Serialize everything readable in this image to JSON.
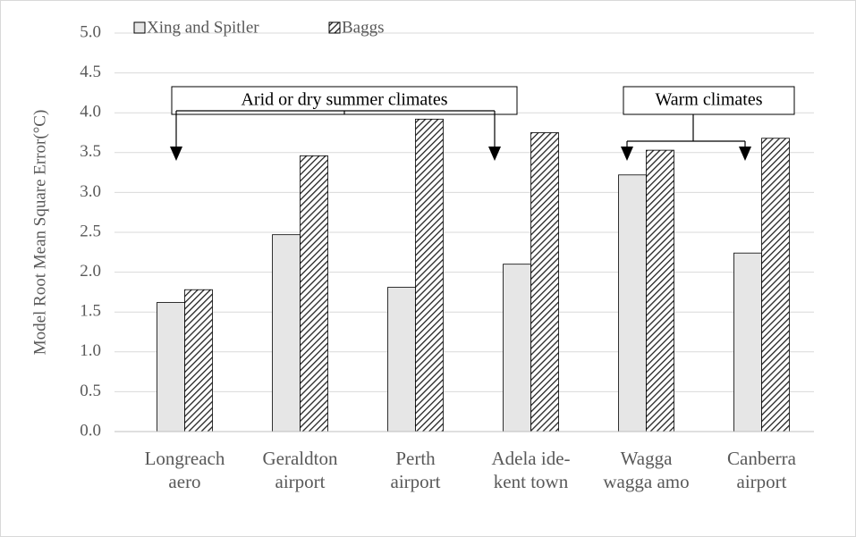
{
  "chart_data": {
    "type": "bar",
    "y_label": "Model Root Mean Square Error(°C)",
    "categories": [
      "Longreach\naero",
      "Geraldton\nairport",
      "Perth\nairport",
      "Adela ide-\nkent town",
      "Wagga\nwagga amo",
      "Canberra\nairport"
    ],
    "series": [
      {
        "name": "Xing and Spitler",
        "color": "#e6e6e6",
        "values": [
          1.62,
          2.47,
          1.81,
          2.1,
          3.22,
          2.24
        ]
      },
      {
        "name": "Baggs",
        "color": "hatch",
        "values": [
          1.78,
          3.46,
          3.92,
          3.75,
          3.53,
          3.68
        ]
      }
    ],
    "annotations": [
      "Arid or dry summer climates",
      "Warm climates"
    ],
    "ylim": [
      0,
      5
    ],
    "yticks": [
      {
        "value": 0,
        "label": "0.0"
      },
      0.5,
      {
        "value": 1,
        "label": "1.0"
      },
      1.5,
      {
        "value": 2,
        "label": "2.0"
      },
      2.5,
      {
        "value": 3,
        "label": "3.0"
      },
      3.5,
      {
        "value": 4,
        "label": "4.0"
      },
      4.5,
      {
        "value": 5,
        "label": "5.0"
      }
    ],
    "grid": true
  }
}
